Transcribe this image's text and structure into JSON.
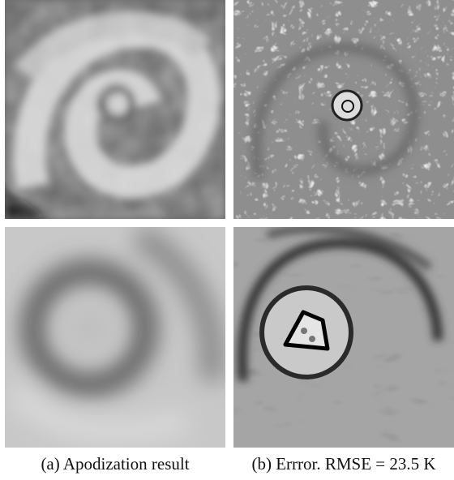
{
  "figure": {
    "panels": [
      {
        "caption": "(a) Apodization result"
      },
      {
        "caption": "(b) Errror. RMSE = 23.5 K"
      }
    ]
  }
}
